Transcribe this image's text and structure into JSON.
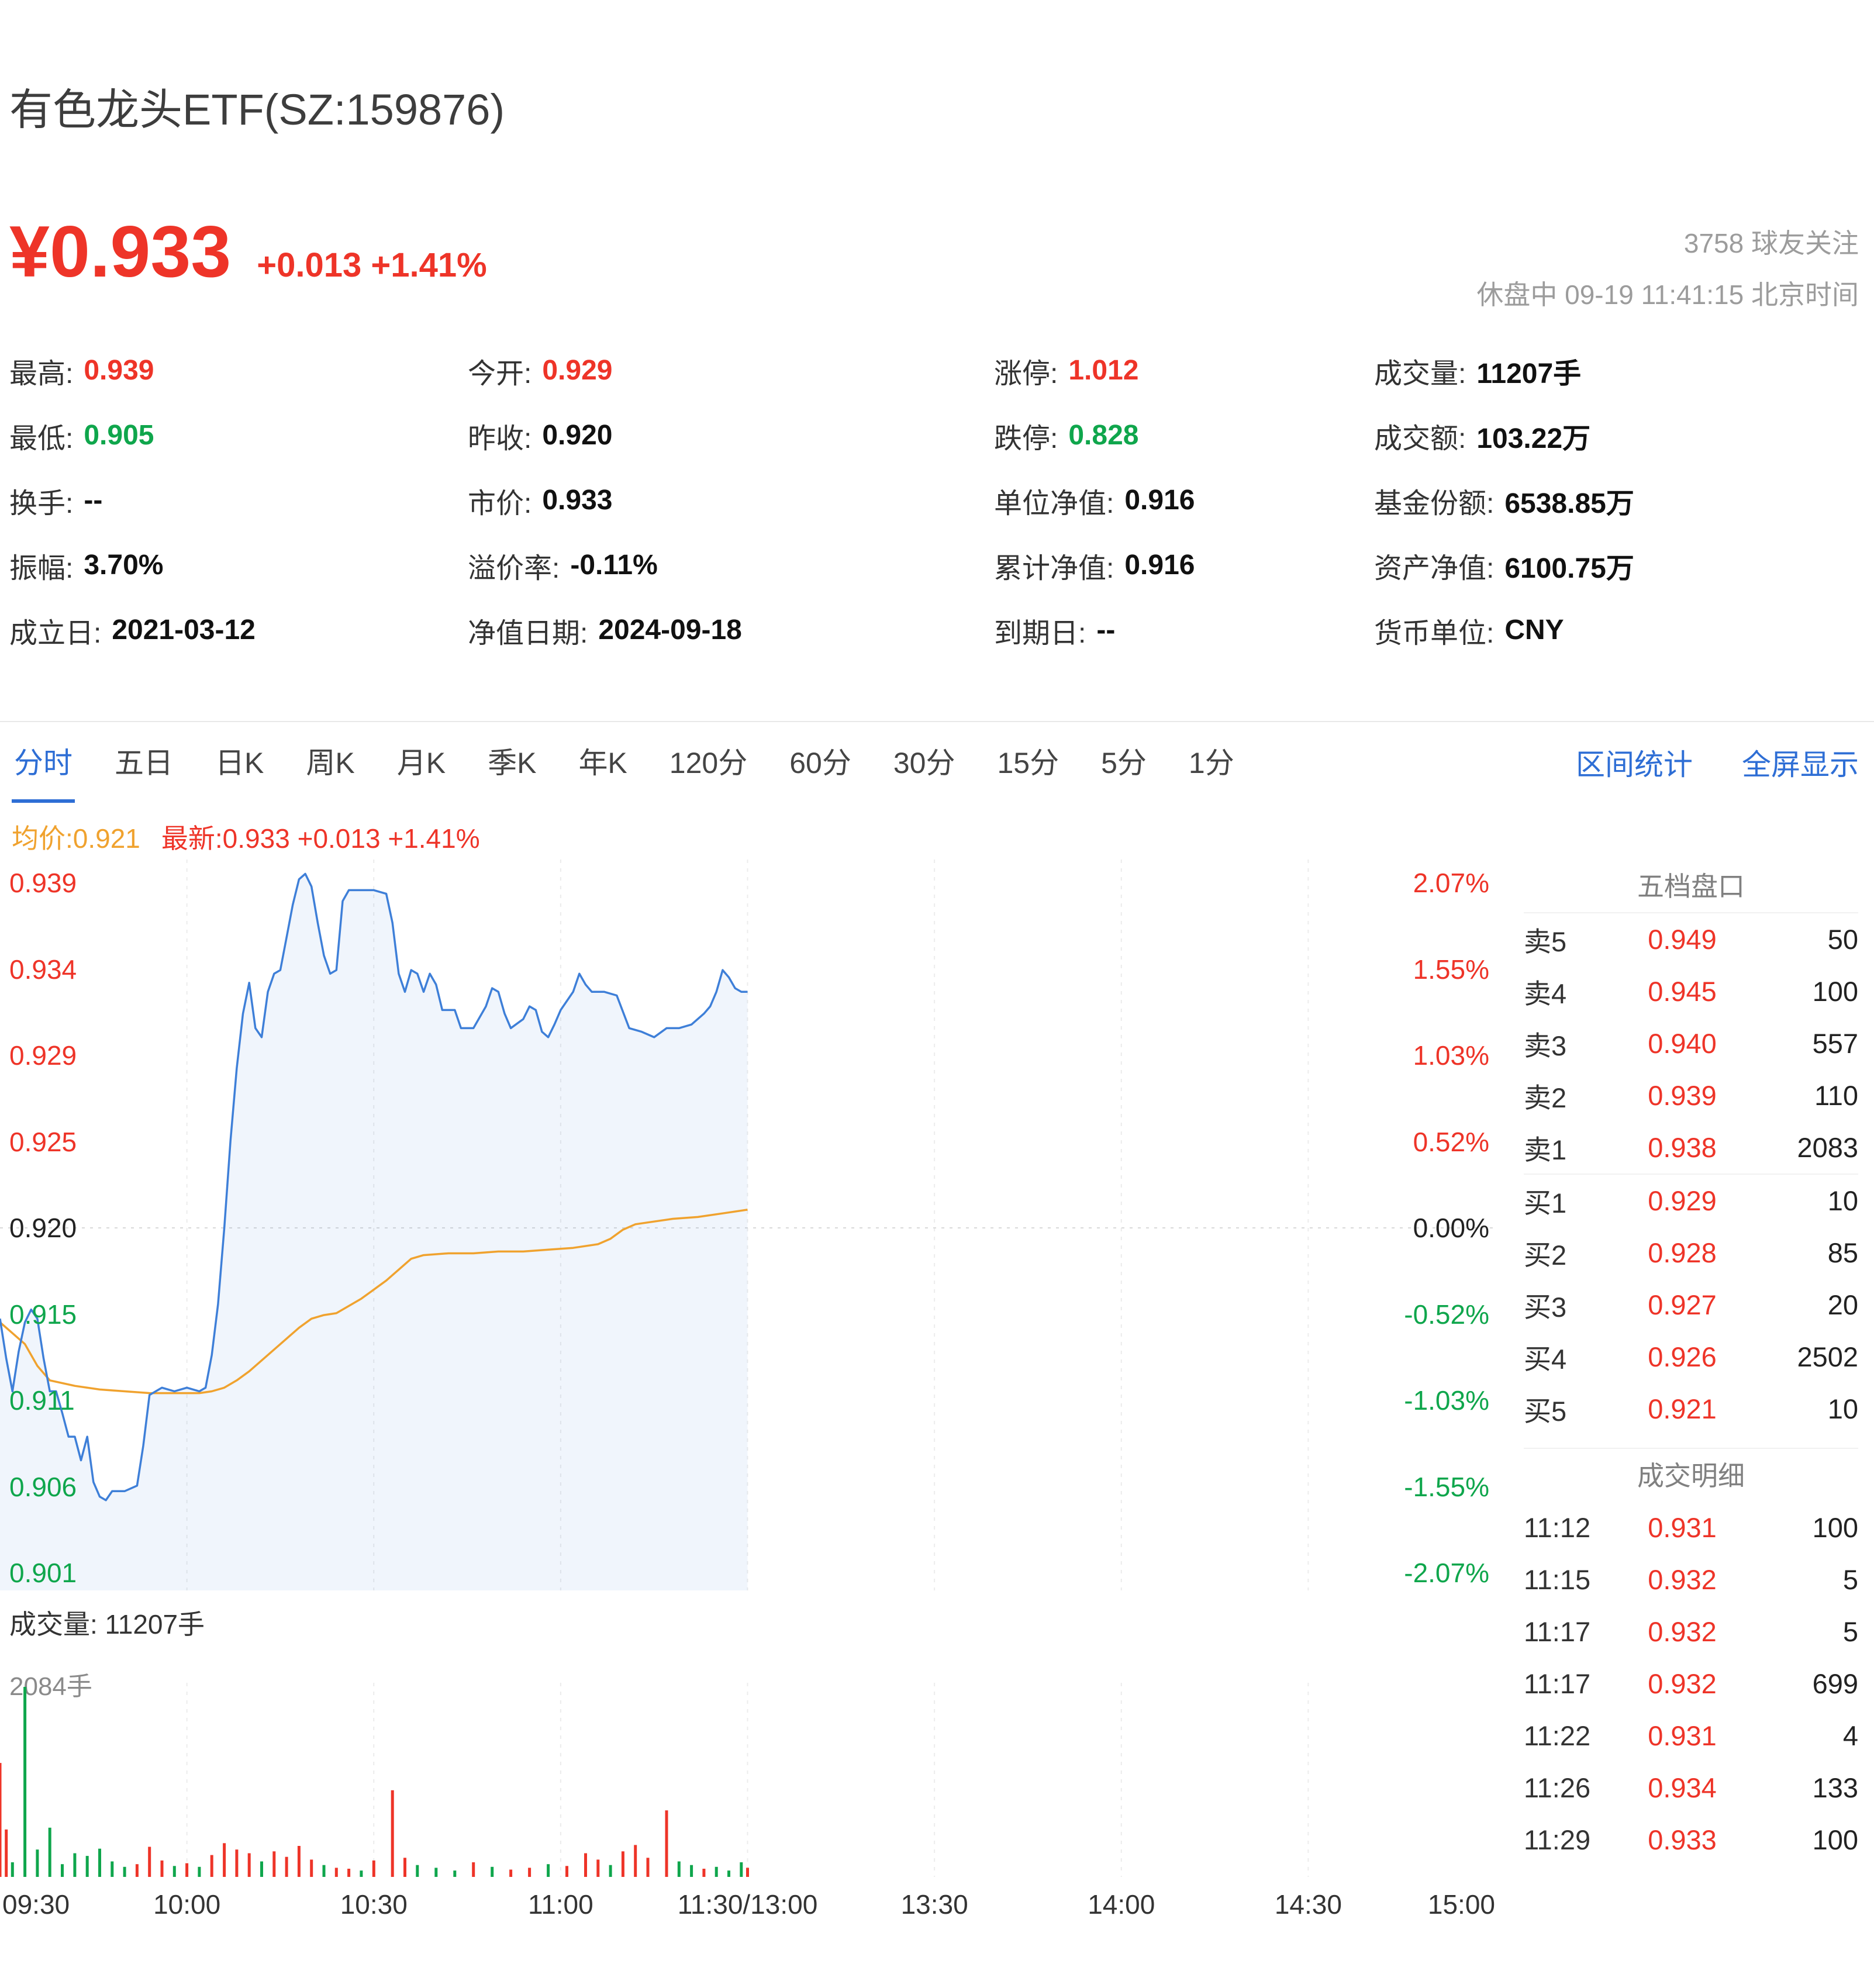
{
  "colors": {
    "red": "#ee3428",
    "green": "#0fa64c",
    "blue": "#2e6ed5",
    "orange": "#f0a22e",
    "line_blue": "#3e7fd8",
    "fill_blue": "rgba(62,127,216,0.08)",
    "grid": "#ececec",
    "mid_dash": "#d9d9d9"
  },
  "header": {
    "title": "有色龙头ETF(SZ:159876)",
    "price": "¥0.933",
    "change": "+0.013 +1.41%",
    "followers": "3758 球友关注",
    "status_line": "休盘中 09-19 11:41:15 北京时间"
  },
  "stats": {
    "columns": [
      [
        {
          "label": "最高:",
          "value": "0.939",
          "color": "red"
        },
        {
          "label": "最低:",
          "value": "0.905",
          "color": "green"
        },
        {
          "label": "换手:",
          "value": "--"
        },
        {
          "label": "振幅:",
          "value": "3.70%"
        },
        {
          "label": "成立日:",
          "value": "2021-03-12"
        }
      ],
      [
        {
          "label": "今开:",
          "value": "0.929",
          "color": "red"
        },
        {
          "label": "昨收:",
          "value": "0.920"
        },
        {
          "label": "市价:",
          "value": "0.933"
        },
        {
          "label": "溢价率:",
          "value": "-0.11%"
        },
        {
          "label": "净值日期:",
          "value": "2024-09-18"
        }
      ],
      [
        {
          "label": "涨停:",
          "value": "1.012",
          "color": "red"
        },
        {
          "label": "跌停:",
          "value": "0.828",
          "color": "green"
        },
        {
          "label": "单位净值:",
          "value": "0.916"
        },
        {
          "label": "累计净值:",
          "value": "0.916"
        },
        {
          "label": "到期日:",
          "value": "--"
        }
      ],
      [
        {
          "label": "成交量:",
          "value": "11207手"
        },
        {
          "label": "成交额:",
          "value": "103.22万"
        },
        {
          "label": "基金份额:",
          "value": "6538.85万"
        },
        {
          "label": "资产净值:",
          "value": "6100.75万"
        },
        {
          "label": "货币单位:",
          "value": "CNY"
        }
      ]
    ]
  },
  "tabs": {
    "items": [
      "分时",
      "五日",
      "日K",
      "周K",
      "月K",
      "季K",
      "年K",
      "120分",
      "60分",
      "30分",
      "15分",
      "5分",
      "1分"
    ],
    "active_index": 0,
    "links": [
      "区间统计",
      "全屏显示"
    ]
  },
  "legend": {
    "avg_label": "均价:0.921",
    "last_label": "最新:0.933 +0.013 +1.41%"
  },
  "chart_data": {
    "type": "line",
    "title": "分时图",
    "x_axis": {
      "labels": [
        "09:30",
        "10:00",
        "10:30",
        "11:00",
        "11:30/13:00",
        "13:30",
        "14:00",
        "14:30",
        "15:00"
      ],
      "total_minutes": 240
    },
    "y_axis_left": {
      "labels": [
        "0.939",
        "0.934",
        "0.929",
        "0.925",
        "0.920",
        "0.915",
        "0.911",
        "0.906",
        "0.901"
      ],
      "min": 0.901,
      "max": 0.939,
      "prev_close": 0.92
    },
    "y_axis_right": {
      "labels": [
        "2.07%",
        "1.55%",
        "1.03%",
        "0.52%",
        "0.00%",
        "-0.52%",
        "-1.03%",
        "-1.55%",
        "-2.07%"
      ]
    },
    "series": [
      {
        "name": "price",
        "points": [
          [
            0,
            0.915
          ],
          [
            1,
            0.9128
          ],
          [
            2,
            0.911
          ],
          [
            3,
            0.9132
          ],
          [
            4,
            0.9148
          ],
          [
            5,
            0.9155
          ],
          [
            6,
            0.915
          ],
          [
            7,
            0.9128
          ],
          [
            8,
            0.911
          ],
          [
            9,
            0.911
          ],
          [
            10,
            0.9098
          ],
          [
            11,
            0.9085
          ],
          [
            12,
            0.9085
          ],
          [
            13,
            0.9072
          ],
          [
            14,
            0.9085
          ],
          [
            15,
            0.906
          ],
          [
            16,
            0.9052
          ],
          [
            17,
            0.905
          ],
          [
            18,
            0.9055
          ],
          [
            20,
            0.9055
          ],
          [
            22,
            0.9058
          ],
          [
            23,
            0.908
          ],
          [
            24,
            0.9108
          ],
          [
            26,
            0.9112
          ],
          [
            28,
            0.911
          ],
          [
            30,
            0.9112
          ],
          [
            32,
            0.911
          ],
          [
            33,
            0.9112
          ],
          [
            34,
            0.913
          ],
          [
            35,
            0.9158
          ],
          [
            36,
            0.92
          ],
          [
            37,
            0.9248
          ],
          [
            38,
            0.9288
          ],
          [
            39,
            0.9318
          ],
          [
            40,
            0.9335
          ],
          [
            41,
            0.931
          ],
          [
            42,
            0.9305
          ],
          [
            43,
            0.933
          ],
          [
            44,
            0.934
          ],
          [
            45,
            0.9342
          ],
          [
            46,
            0.936
          ],
          [
            47,
            0.9378
          ],
          [
            48,
            0.9392
          ],
          [
            49,
            0.9395
          ],
          [
            50,
            0.9388
          ],
          [
            51,
            0.9368
          ],
          [
            52,
            0.935
          ],
          [
            53,
            0.934
          ],
          [
            54,
            0.9342
          ],
          [
            55,
            0.938
          ],
          [
            56,
            0.9386
          ],
          [
            58,
            0.9386
          ],
          [
            60,
            0.9386
          ],
          [
            62,
            0.9384
          ],
          [
            63,
            0.9368
          ],
          [
            64,
            0.934
          ],
          [
            65,
            0.933
          ],
          [
            66,
            0.9342
          ],
          [
            67,
            0.934
          ],
          [
            68,
            0.933
          ],
          [
            69,
            0.934
          ],
          [
            70,
            0.9334
          ],
          [
            71,
            0.932
          ],
          [
            73,
            0.932
          ],
          [
            74,
            0.931
          ],
          [
            76,
            0.931
          ],
          [
            78,
            0.9322
          ],
          [
            79,
            0.9332
          ],
          [
            80,
            0.933
          ],
          [
            81,
            0.9318
          ],
          [
            82,
            0.931
          ],
          [
            84,
            0.9315
          ],
          [
            85,
            0.9322
          ],
          [
            86,
            0.932
          ],
          [
            87,
            0.9308
          ],
          [
            88,
            0.9305
          ],
          [
            89,
            0.9312
          ],
          [
            90,
            0.932
          ],
          [
            92,
            0.933
          ],
          [
            93,
            0.934
          ],
          [
            94,
            0.9334
          ],
          [
            95,
            0.933
          ],
          [
            97,
            0.933
          ],
          [
            99,
            0.9328
          ],
          [
            101,
            0.931
          ],
          [
            103,
            0.9308
          ],
          [
            105,
            0.9305
          ],
          [
            107,
            0.931
          ],
          [
            109,
            0.931
          ],
          [
            111,
            0.9312
          ],
          [
            113,
            0.9318
          ],
          [
            114,
            0.9322
          ],
          [
            115,
            0.933
          ],
          [
            116,
            0.9342
          ],
          [
            117,
            0.9338
          ],
          [
            118,
            0.9332
          ],
          [
            119,
            0.933
          ],
          [
            120,
            0.933
          ]
        ]
      },
      {
        "name": "avg",
        "points": [
          [
            0,
            0.9148
          ],
          [
            2,
            0.9142
          ],
          [
            4,
            0.9136
          ],
          [
            6,
            0.9124
          ],
          [
            8,
            0.9116
          ],
          [
            12,
            0.9113
          ],
          [
            16,
            0.9111
          ],
          [
            20,
            0.911
          ],
          [
            24,
            0.9109
          ],
          [
            28,
            0.9109
          ],
          [
            32,
            0.9109
          ],
          [
            34,
            0.911
          ],
          [
            36,
            0.9112
          ],
          [
            38,
            0.9116
          ],
          [
            40,
            0.9121
          ],
          [
            42,
            0.9127
          ],
          [
            44,
            0.9133
          ],
          [
            46,
            0.9139
          ],
          [
            48,
            0.9145
          ],
          [
            50,
            0.915
          ],
          [
            52,
            0.9152
          ],
          [
            54,
            0.9153
          ],
          [
            56,
            0.9157
          ],
          [
            58,
            0.9161
          ],
          [
            60,
            0.9166
          ],
          [
            62,
            0.9171
          ],
          [
            64,
            0.9177
          ],
          [
            66,
            0.9183
          ],
          [
            68,
            0.9185
          ],
          [
            72,
            0.9186
          ],
          [
            76,
            0.9186
          ],
          [
            80,
            0.9187
          ],
          [
            84,
            0.9187
          ],
          [
            88,
            0.9188
          ],
          [
            92,
            0.9189
          ],
          [
            96,
            0.9191
          ],
          [
            98,
            0.9194
          ],
          [
            100,
            0.9199
          ],
          [
            102,
            0.9202
          ],
          [
            104,
            0.9203
          ],
          [
            108,
            0.9205
          ],
          [
            112,
            0.9206
          ],
          [
            116,
            0.9208
          ],
          [
            120,
            0.921
          ]
        ]
      }
    ],
    "volume": {
      "max": 2084,
      "bars": [
        [
          0,
          1250,
          "r"
        ],
        [
          1,
          520,
          "r"
        ],
        [
          2,
          160,
          "g"
        ],
        [
          4,
          2084,
          "g"
        ],
        [
          6,
          300,
          "g"
        ],
        [
          8,
          540,
          "g"
        ],
        [
          10,
          140,
          "g"
        ],
        [
          12,
          260,
          "g"
        ],
        [
          14,
          230,
          "g"
        ],
        [
          16,
          310,
          "g"
        ],
        [
          18,
          170,
          "g"
        ],
        [
          20,
          110,
          "g"
        ],
        [
          22,
          140,
          "r"
        ],
        [
          24,
          330,
          "r"
        ],
        [
          26,
          180,
          "r"
        ],
        [
          28,
          120,
          "g"
        ],
        [
          30,
          150,
          "r"
        ],
        [
          32,
          110,
          "g"
        ],
        [
          34,
          240,
          "r"
        ],
        [
          36,
          370,
          "r"
        ],
        [
          38,
          300,
          "r"
        ],
        [
          40,
          260,
          "r"
        ],
        [
          42,
          170,
          "g"
        ],
        [
          44,
          280,
          "r"
        ],
        [
          46,
          220,
          "r"
        ],
        [
          48,
          340,
          "r"
        ],
        [
          50,
          190,
          "r"
        ],
        [
          52,
          130,
          "g"
        ],
        [
          54,
          100,
          "r"
        ],
        [
          56,
          90,
          "r"
        ],
        [
          58,
          70,
          "g"
        ],
        [
          60,
          180,
          "r"
        ],
        [
          63,
          950,
          "r"
        ],
        [
          65,
          210,
          "r"
        ],
        [
          67,
          130,
          "g"
        ],
        [
          70,
          100,
          "g"
        ],
        [
          73,
          70,
          "g"
        ],
        [
          76,
          160,
          "r"
        ],
        [
          79,
          110,
          "g"
        ],
        [
          82,
          80,
          "r"
        ],
        [
          85,
          100,
          "r"
        ],
        [
          88,
          140,
          "g"
        ],
        [
          91,
          120,
          "r"
        ],
        [
          94,
          260,
          "r"
        ],
        [
          96,
          190,
          "r"
        ],
        [
          98,
          130,
          "g"
        ],
        [
          100,
          280,
          "r"
        ],
        [
          102,
          350,
          "r"
        ],
        [
          104,
          210,
          "r"
        ],
        [
          107,
          730,
          "r"
        ],
        [
          109,
          170,
          "g"
        ],
        [
          111,
          130,
          "g"
        ],
        [
          113,
          90,
          "r"
        ],
        [
          115,
          110,
          "g"
        ],
        [
          117,
          70,
          "g"
        ],
        [
          119,
          160,
          "g"
        ],
        [
          120,
          100,
          "r"
        ]
      ]
    }
  },
  "volume_section": {
    "label": "成交量: 11207手",
    "max_label": "2084手"
  },
  "order_book": {
    "title": "五档盘口",
    "asks": [
      {
        "label": "卖5",
        "price": "0.949",
        "qty": "50"
      },
      {
        "label": "卖4",
        "price": "0.945",
        "qty": "100"
      },
      {
        "label": "卖3",
        "price": "0.940",
        "qty": "557"
      },
      {
        "label": "卖2",
        "price": "0.939",
        "qty": "110"
      },
      {
        "label": "卖1",
        "price": "0.938",
        "qty": "2083"
      }
    ],
    "bids": [
      {
        "label": "买1",
        "price": "0.929",
        "qty": "10"
      },
      {
        "label": "买2",
        "price": "0.928",
        "qty": "85"
      },
      {
        "label": "买3",
        "price": "0.927",
        "qty": "20"
      },
      {
        "label": "买4",
        "price": "0.926",
        "qty": "2502"
      },
      {
        "label": "买5",
        "price": "0.921",
        "qty": "10"
      }
    ]
  },
  "trades": {
    "title": "成交明细",
    "rows": [
      {
        "time": "11:12",
        "price": "0.931",
        "qty": "100"
      },
      {
        "time": "11:15",
        "price": "0.932",
        "qty": "5"
      },
      {
        "time": "11:17",
        "price": "0.932",
        "qty": "5"
      },
      {
        "time": "11:17",
        "price": "0.932",
        "qty": "699"
      },
      {
        "time": "11:22",
        "price": "0.931",
        "qty": "4"
      },
      {
        "time": "11:26",
        "price": "0.934",
        "qty": "133"
      },
      {
        "time": "11:29",
        "price": "0.933",
        "qty": "100"
      }
    ]
  }
}
